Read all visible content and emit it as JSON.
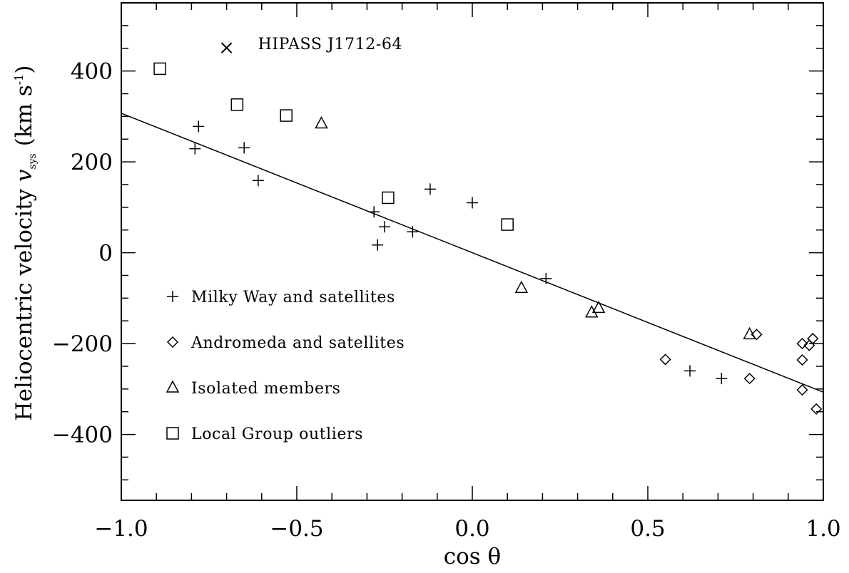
{
  "chart_data": {
    "type": "scatter",
    "xlabel": "cos θ",
    "ylabel": "Heliocentric velocity v_sys (km s⁻¹)",
    "ylabel_parts": {
      "main": "Heliocentric velocity ",
      "var": "v",
      "sub": "sys",
      "unit_open": " (km s",
      "sup": "-1",
      "unit_close": ")"
    },
    "xlim": [
      -1.0,
      1.0
    ],
    "ylim": [
      -545,
      550
    ],
    "x_ticks": [
      -1.0,
      -0.5,
      0.0,
      0.5,
      1.0
    ],
    "x_tick_labels": [
      "−1.0",
      "−0.5",
      "0.0",
      "0.5",
      "1.0"
    ],
    "y_ticks": [
      -400,
      -200,
      0,
      200,
      400
    ],
    "y_tick_labels": [
      "−400",
      "−200",
      "0",
      "200",
      "400"
    ],
    "x_minor_step": 0.1,
    "y_minor_step": 50,
    "grid": false,
    "legend_position": "lower-left",
    "series": [
      {
        "name": "Milky Way and satellites",
        "marker": "plus",
        "points": [
          [
            -0.79,
            229
          ],
          [
            -0.78,
            278
          ],
          [
            -0.65,
            231
          ],
          [
            -0.61,
            159
          ],
          [
            -0.28,
            90
          ],
          [
            -0.27,
            17
          ],
          [
            -0.25,
            57
          ],
          [
            -0.17,
            46
          ],
          [
            -0.12,
            140
          ],
          [
            0.0,
            110
          ],
          [
            0.21,
            -57
          ],
          [
            0.62,
            -260
          ],
          [
            0.71,
            -277
          ]
        ]
      },
      {
        "name": "Andromeda and satellites",
        "marker": "diamond",
        "points": [
          [
            0.55,
            -235
          ],
          [
            0.79,
            -277
          ],
          [
            0.81,
            -180
          ],
          [
            0.94,
            -200
          ],
          [
            0.94,
            -236
          ],
          [
            0.94,
            -302
          ],
          [
            0.96,
            -204
          ],
          [
            0.97,
            -189
          ],
          [
            0.98,
            -344
          ]
        ]
      },
      {
        "name": "Isolated members",
        "marker": "triangle",
        "points": [
          [
            -0.43,
            284
          ],
          [
            0.14,
            -78
          ],
          [
            0.34,
            -132
          ],
          [
            0.36,
            -122
          ],
          [
            0.79,
            -180
          ]
        ]
      },
      {
        "name": "Local Group outliers",
        "marker": "square",
        "points": [
          [
            -0.89,
            405
          ],
          [
            -0.67,
            326
          ],
          [
            -0.53,
            302
          ],
          [
            -0.24,
            121
          ],
          [
            0.1,
            62
          ]
        ]
      }
    ],
    "fit_line": {
      "x": [
        -1.0,
        1.0
      ],
      "y": [
        307,
        -307
      ]
    },
    "annotation": {
      "label": "HIPASS J1712-64",
      "marker": "cross",
      "point": [
        -0.7,
        451
      ]
    }
  }
}
